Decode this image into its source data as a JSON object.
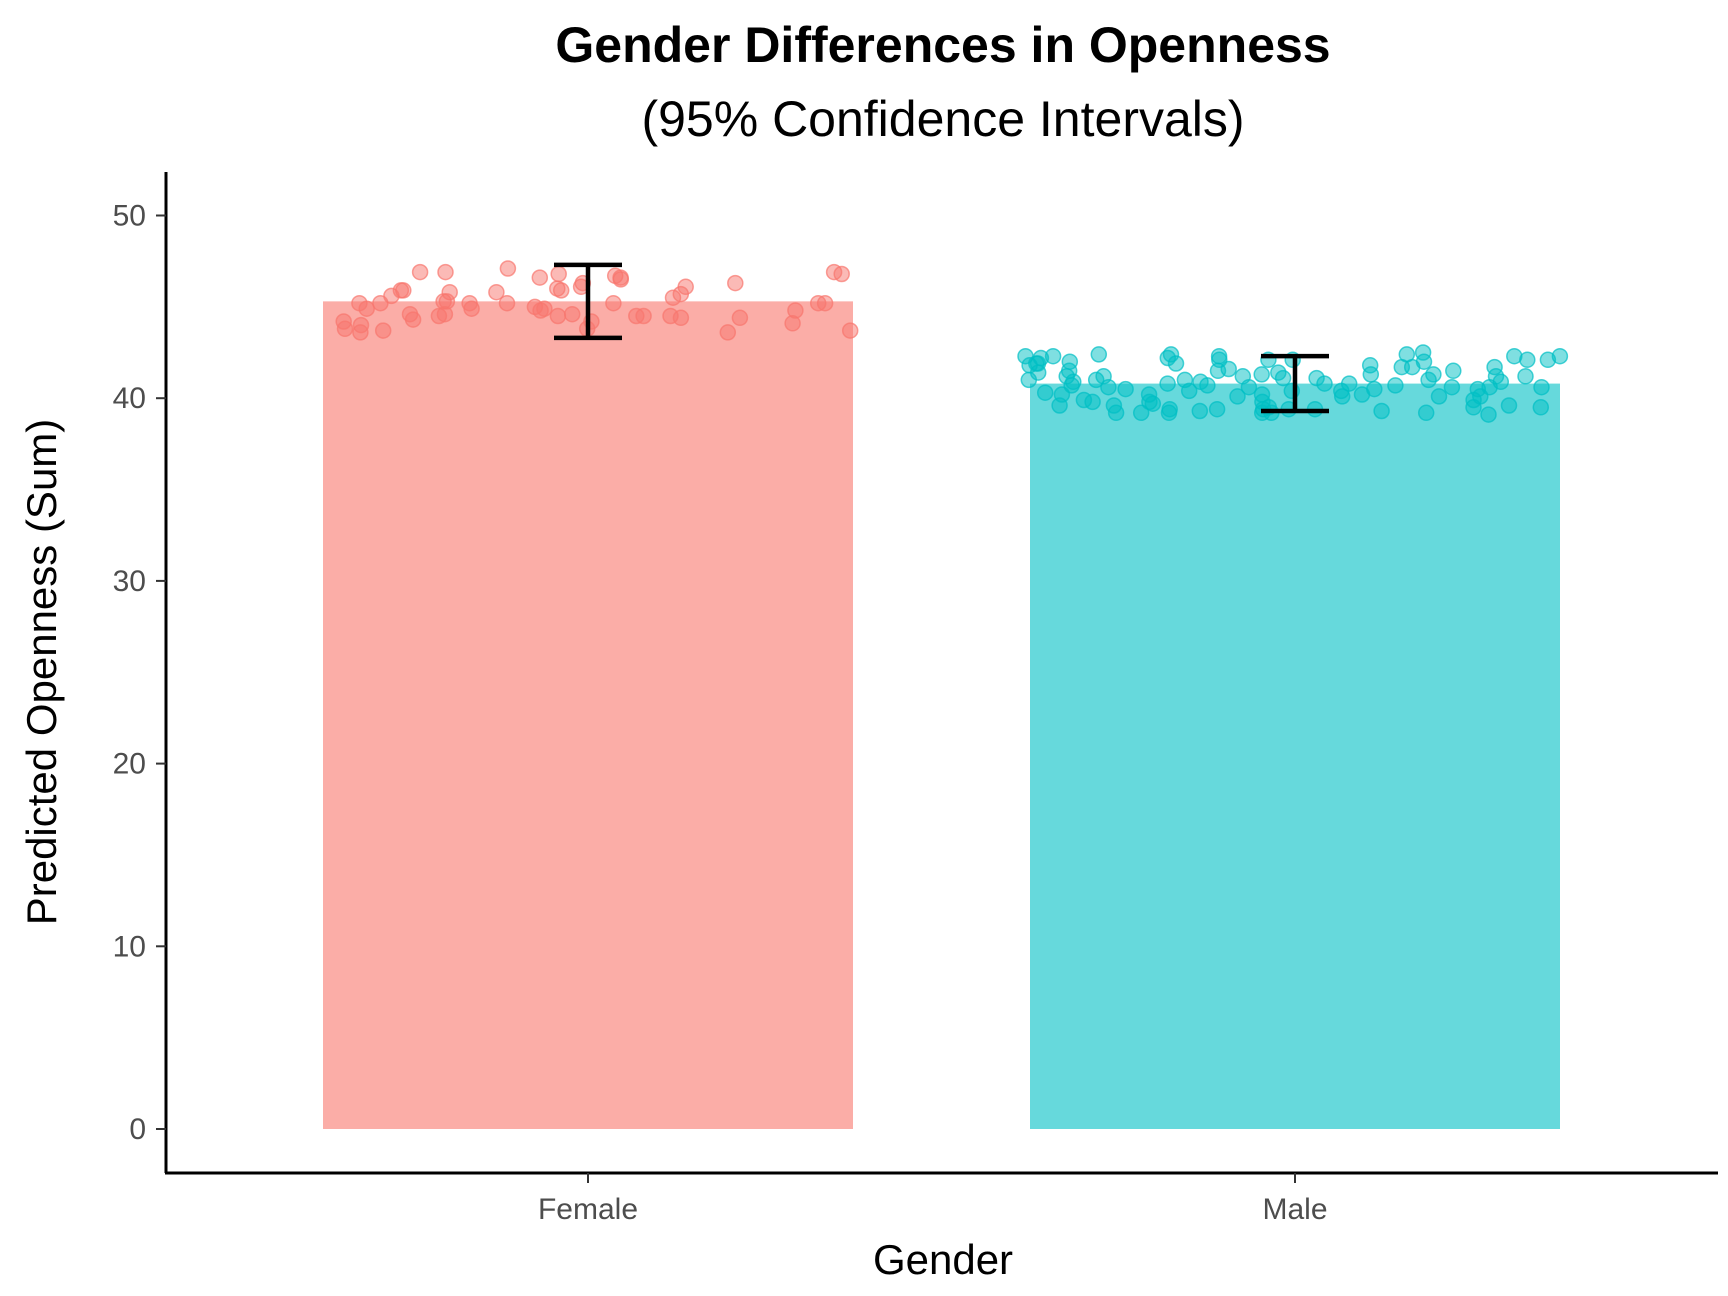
{
  "chart_data": {
    "type": "bar",
    "title": "Gender Differences in Openness",
    "subtitle": "(95% Confidence Intervals)",
    "xlabel": "Gender",
    "ylabel": "Predicted Openness (Sum)",
    "categories": [
      "Female",
      "Male"
    ],
    "values": [
      45.3,
      40.8
    ],
    "ci_lower": [
      43.3,
      39.3
    ],
    "ci_upper": [
      47.3,
      42.3
    ],
    "ylim": [
      0,
      52
    ],
    "yticks": [
      0,
      10,
      20,
      30,
      40,
      50
    ],
    "colors": {
      "Female": "#F8766D",
      "Male": "#00BFC4",
      "error_bar": "#000000"
    },
    "legend": "none",
    "grid": false,
    "jitter_points": [
      {
        "category": "Female",
        "y": [
          46.3,
          46.5,
          45.2,
          45.8,
          46.0,
          44.2,
          43.6,
          44.1,
          44.5,
          46.6,
          44.9,
          44.4,
          45.5,
          45.2,
          43.8,
          44.6,
          44.4,
          45.9,
          46.6,
          46.1,
          44.3,
          43.8,
          45.2,
          46.8,
          43.7,
          44.5,
          46.9,
          46.9,
          44.9,
          46.7,
          45.7,
          45.2,
          44.6,
          43.7,
          46.8,
          45.3,
          45.2,
          45.8,
          45.9,
          46.3,
          47.1,
          45.2,
          44.0,
          45.2,
          45.3,
          44.8,
          44.6,
          46.9,
          44.5,
          45.0,
          43.6,
          44.5,
          45.6,
          44.5,
          45.9,
          44.9,
          44.2,
          44.8,
          46.1
        ]
      },
      {
        "category": "Male",
        "y": [
          40.5,
          39.5,
          40.9,
          41.3,
          42.1,
          40.2,
          40.5,
          42.1,
          39.2,
          40.8,
          39.7,
          39.2,
          41.0,
          42.4,
          40.1,
          39.1,
          42.1,
          41.2,
          40.6,
          41.0,
          41.3,
          40.8,
          41.9,
          39.3,
          41.5,
          39.2,
          40.1,
          40.7,
          42.5,
          39.2,
          40.6,
          41.0,
          42.1,
          40.4,
          39.4,
          40.9,
          42.3,
          39.2,
          41.2,
          40.1,
          41.4,
          39.8,
          41.5,
          39.6,
          42.2,
          41.4,
          40.6,
          42.4,
          41.7,
          39.3,
          41.7,
          40.2,
          39.5,
          39.2,
          40.3,
          41.5,
          41.9,
          39.4,
          39.9,
          40.1,
          41.2,
          40.4,
          42.3,
          41.9,
          39.4,
          39.6,
          39.4,
          39.8,
          41.0,
          40.6,
          42.4,
          39.6,
          42.3,
          40.2,
          40.7,
          41.2,
          39.9,
          41.1,
          40.6,
          41.8,
          41.3,
          39.5,
          42.0,
          40.7,
          42.1,
          41.7,
          41.8,
          39.4,
          42.3,
          41.2,
          40.9,
          42.0,
          40.2,
          40.5,
          40.4,
          42.2,
          40.8,
          39.8,
          41.6,
          41.1,
          42.3
        ]
      }
    ]
  }
}
